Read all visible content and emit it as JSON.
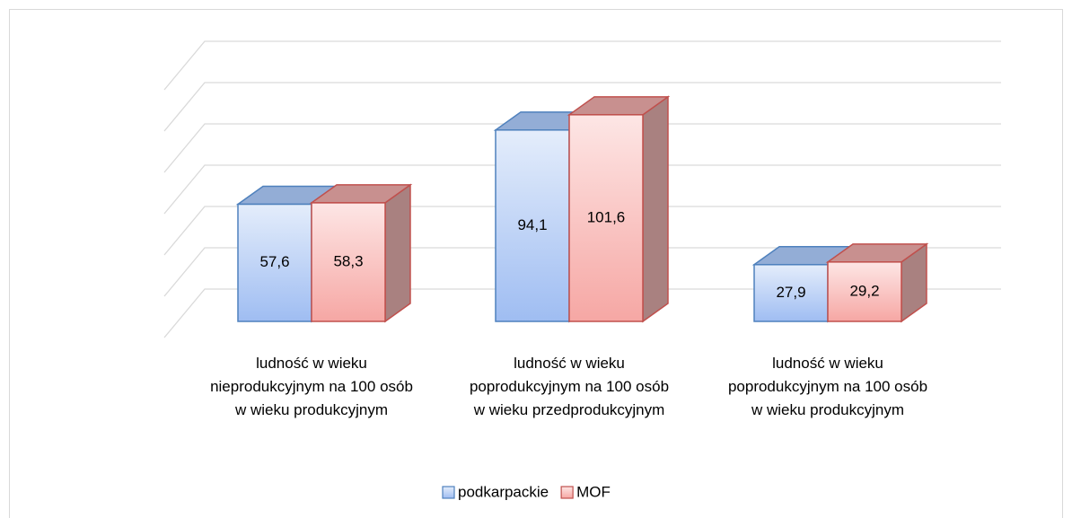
{
  "chart_data": {
    "type": "bar3d",
    "categories": [
      "ludność w wieku nieprodukcyjnym na 100 osób w wieku produkcyjnym",
      "ludność w wieku poprodukcyjnym na 100 osób w wieku przedprodukcyjnym",
      "ludność w wieku poprodukcyjnym na 100 osób w wieku produkcyjnym"
    ],
    "series": [
      {
        "name": "podkarpackie",
        "color": "#4f81bd",
        "values": [
          57.6,
          94.1,
          27.9
        ],
        "value_labels": [
          "57,6",
          "94,1",
          "27,9"
        ]
      },
      {
        "name": "MOF",
        "color": "#c0504d",
        "values": [
          58.3,
          101.6,
          29.2
        ],
        "value_labels": [
          "58,3",
          "101,6",
          "29,2"
        ]
      }
    ],
    "ylim": [
      0,
      120
    ],
    "yticks": [
      0,
      20,
      40,
      60,
      80,
      100,
      120
    ],
    "grid": true,
    "legend": "bottom"
  }
}
